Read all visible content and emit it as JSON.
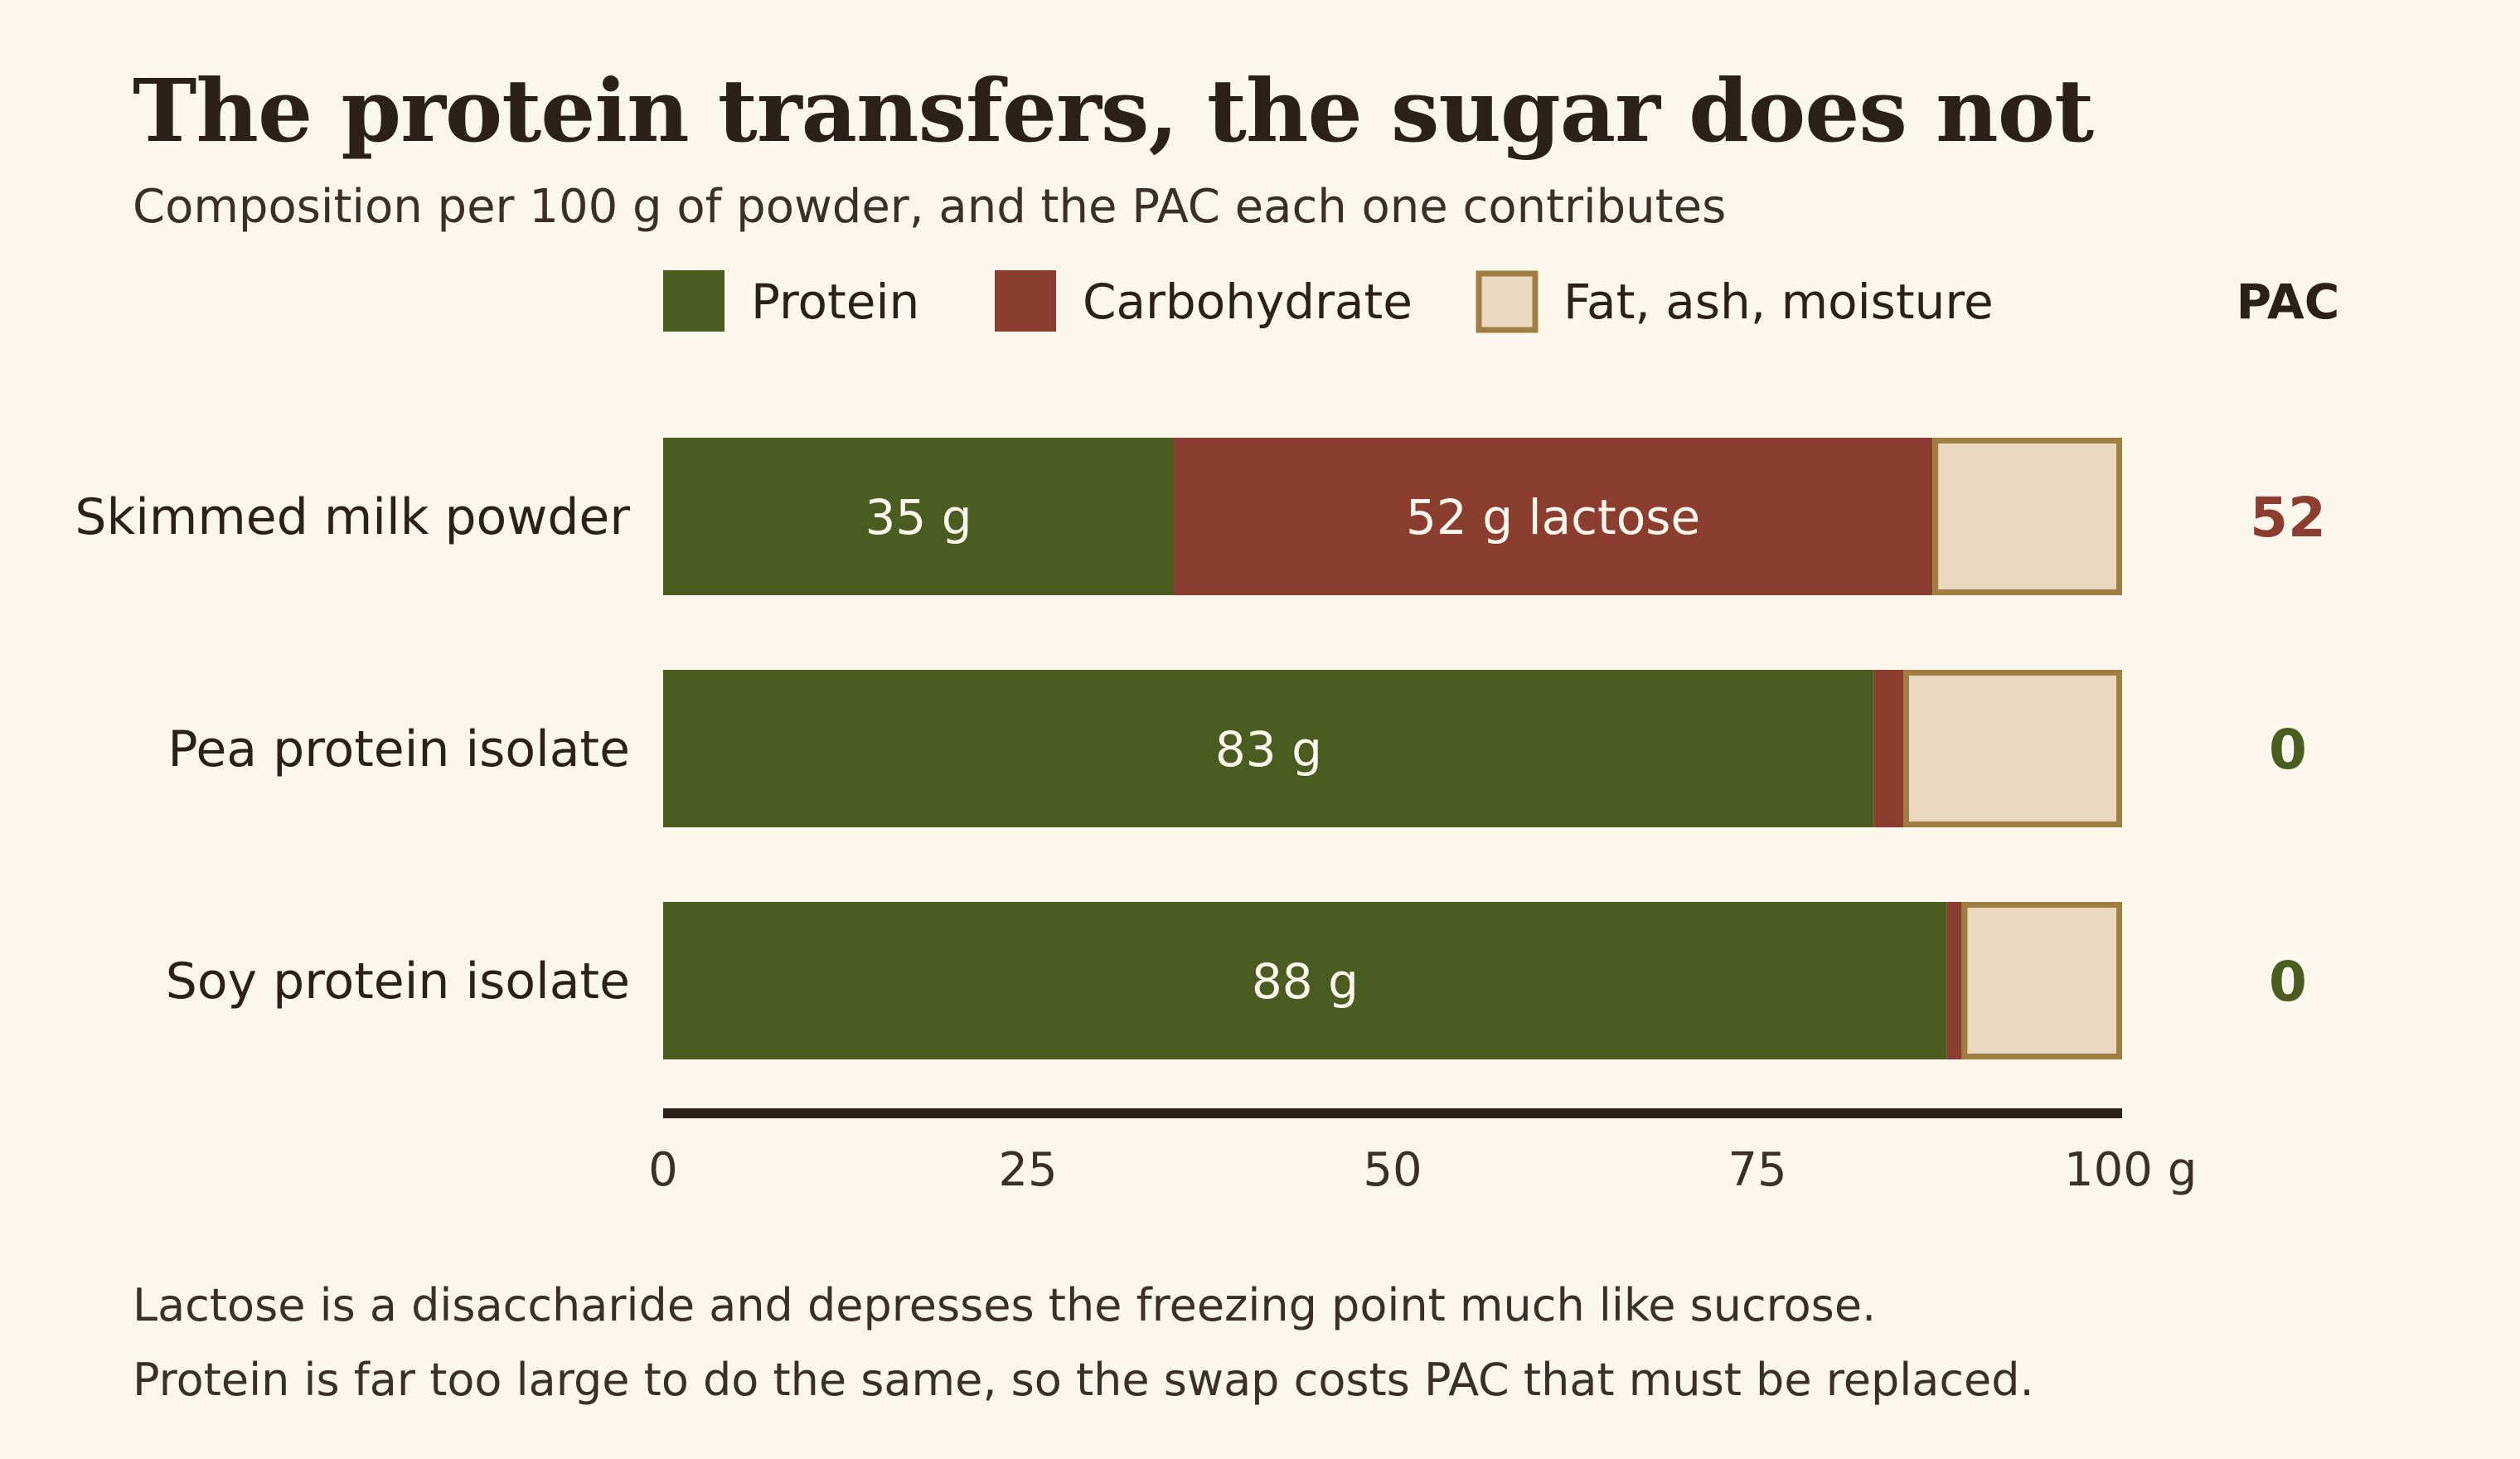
{
  "title": "The protein transfers, the sugar does not",
  "subtitle": "Composition per 100 g of powder, and the PAC each one contributes",
  "footnote_lines": [
    "Lactose is a disaccharide and depresses the freezing point much like sucrose.",
    "Protein is far too large to do the same, so the swap costs PAC that must be replaced."
  ],
  "chart_data": {
    "type": "bar",
    "orientation": "horizontal",
    "stacked": true,
    "categories": [
      "Skimmed milk powder",
      "Pea protein isolate",
      "Soy protein isolate"
    ],
    "series": [
      {
        "name": "Protein",
        "values": [
          35,
          83,
          88
        ],
        "color": "#4a5c20",
        "labels": [
          "35 g",
          "83 g",
          "88 g"
        ]
      },
      {
        "name": "Carbohydrate",
        "values": [
          52,
          2,
          1
        ],
        "color": "#8b3e30",
        "labels": [
          "52 g lactose",
          "",
          ""
        ]
      },
      {
        "name": "Fat, ash, moisture",
        "values": [
          13,
          15,
          11
        ],
        "color": "#e9d8bf",
        "stroke": "#a07d40",
        "labels": [
          "",
          "",
          ""
        ]
      }
    ],
    "xlim": [
      0,
      100
    ],
    "x_ticks": [
      "0",
      "25",
      "50",
      "75",
      "100 g"
    ],
    "x_tick_values": [
      0,
      25,
      50,
      75,
      100
    ],
    "legend_position": "top",
    "pac": {
      "header": "PAC",
      "values": [
        "52",
        "0",
        "0"
      ],
      "colors": [
        "#8b3e30",
        "#4a5c20",
        "#4a5c20"
      ]
    },
    "grid": false
  }
}
